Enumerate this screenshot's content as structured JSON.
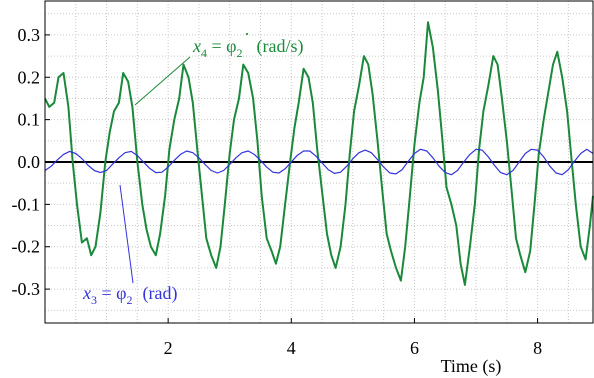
{
  "chart_data": {
    "type": "line",
    "xlabel": "Time (s)",
    "ylabel": "",
    "xlim": [
      0,
      8.9
    ],
    "ylim": [
      -0.38,
      0.38
    ],
    "xticks": [
      2,
      4,
      6,
      8
    ],
    "yticks": [
      -0.3,
      -0.2,
      -0.1,
      0.0,
      0.1,
      0.2,
      0.3
    ],
    "ytick_labels": [
      "-0.3",
      "-0.2",
      "-0.1",
      "0.0",
      "0.1",
      "0.2",
      "0.3"
    ],
    "grid": true,
    "series": [
      {
        "color": "#1a8a3a",
        "x": [
          0.0,
          0.07,
          0.15,
          0.22,
          0.3,
          0.38,
          0.45,
          0.52,
          0.6,
          0.68,
          0.75,
          0.82,
          0.9,
          0.98,
          1.05,
          1.12,
          1.2,
          1.27,
          1.35,
          1.42,
          1.5,
          1.58,
          1.65,
          1.72,
          1.8,
          1.87,
          1.95,
          2.02,
          2.1,
          2.18,
          2.25,
          2.33,
          2.4,
          2.48,
          2.55,
          2.62,
          2.7,
          2.78,
          2.85,
          2.92,
          3.0,
          3.07,
          3.15,
          3.22,
          3.3,
          3.38,
          3.45,
          3.52,
          3.6,
          3.68,
          3.75,
          3.82,
          3.9,
          3.98,
          4.05,
          4.12,
          4.2,
          4.28,
          4.35,
          4.42,
          4.5,
          4.58,
          4.65,
          4.72,
          4.8,
          4.88,
          4.95,
          5.02,
          5.1,
          5.18,
          5.25,
          5.32,
          5.4,
          5.48,
          5.55,
          5.62,
          5.7,
          5.78,
          5.85,
          5.92,
          6.0,
          6.08,
          6.15,
          6.22,
          6.3,
          6.38,
          6.45,
          6.52,
          6.6,
          6.68,
          6.75,
          6.82,
          6.9,
          6.98,
          7.05,
          7.12,
          7.2,
          7.28,
          7.35,
          7.42,
          7.5,
          7.58,
          7.65,
          7.72,
          7.8,
          7.88,
          7.95,
          8.02,
          8.1,
          8.18,
          8.25,
          8.32,
          8.4,
          8.48,
          8.55,
          8.62,
          8.7,
          8.78,
          8.85,
          8.9
        ],
        "values": [
          0.15,
          0.13,
          0.14,
          0.2,
          0.21,
          0.13,
          0.0,
          -0.1,
          -0.19,
          -0.18,
          -0.22,
          -0.2,
          -0.12,
          0.0,
          0.07,
          0.12,
          0.14,
          0.21,
          0.19,
          0.13,
          0.0,
          -0.1,
          -0.16,
          -0.2,
          -0.22,
          -0.17,
          -0.08,
          0.03,
          0.1,
          0.15,
          0.23,
          0.2,
          0.14,
          0.02,
          -0.08,
          -0.18,
          -0.22,
          -0.25,
          -0.2,
          -0.1,
          0.02,
          0.1,
          0.15,
          0.23,
          0.21,
          0.15,
          0.05,
          -0.08,
          -0.18,
          -0.21,
          -0.24,
          -0.2,
          -0.1,
          0.0,
          0.08,
          0.14,
          0.22,
          0.2,
          0.14,
          0.03,
          -0.07,
          -0.17,
          -0.22,
          -0.25,
          -0.2,
          -0.1,
          0.02,
          0.12,
          0.18,
          0.25,
          0.23,
          0.16,
          0.05,
          -0.07,
          -0.17,
          -0.21,
          -0.25,
          -0.28,
          -0.2,
          -0.09,
          0.04,
          0.14,
          0.2,
          0.33,
          0.27,
          0.17,
          0.06,
          -0.06,
          -0.1,
          -0.15,
          -0.24,
          -0.29,
          -0.2,
          -0.1,
          0.03,
          0.12,
          0.18,
          0.25,
          0.23,
          0.15,
          0.05,
          -0.07,
          -0.18,
          -0.22,
          -0.26,
          -0.21,
          -0.1,
          0.02,
          0.1,
          0.17,
          0.23,
          0.26,
          0.2,
          0.12,
          0.01,
          -0.1,
          -0.2,
          -0.23,
          -0.15,
          -0.08
        ]
      },
      {
        "color": "#3333dd",
        "x": [
          0.0,
          0.1,
          0.2,
          0.3,
          0.4,
          0.5,
          0.6,
          0.7,
          0.8,
          0.9,
          1.0,
          1.1,
          1.2,
          1.3,
          1.4,
          1.5,
          1.6,
          1.7,
          1.8,
          1.9,
          2.0,
          2.1,
          2.2,
          2.3,
          2.4,
          2.5,
          2.6,
          2.7,
          2.8,
          2.9,
          3.0,
          3.1,
          3.2,
          3.3,
          3.4,
          3.5,
          3.6,
          3.7,
          3.8,
          3.9,
          4.0,
          4.1,
          4.2,
          4.3,
          4.4,
          4.5,
          4.6,
          4.7,
          4.8,
          4.9,
          5.0,
          5.1,
          5.2,
          5.3,
          5.4,
          5.5,
          5.6,
          5.7,
          5.8,
          5.9,
          6.0,
          6.1,
          6.2,
          6.3,
          6.4,
          6.5,
          6.6,
          6.7,
          6.8,
          6.9,
          7.0,
          7.1,
          7.2,
          7.3,
          7.4,
          7.5,
          7.6,
          7.7,
          7.8,
          7.9,
          8.0,
          8.1,
          8.2,
          8.3,
          8.4,
          8.5,
          8.6,
          8.7,
          8.8,
          8.9
        ],
        "values": [
          -0.02,
          -0.01,
          0.005,
          0.018,
          0.025,
          0.02,
          0.008,
          -0.008,
          -0.02,
          -0.025,
          -0.02,
          -0.005,
          0.01,
          0.022,
          0.025,
          0.015,
          0.0,
          -0.015,
          -0.025,
          -0.024,
          -0.012,
          0.004,
          0.018,
          0.026,
          0.022,
          0.01,
          -0.006,
          -0.02,
          -0.026,
          -0.02,
          -0.006,
          0.01,
          0.022,
          0.026,
          0.018,
          0.004,
          -0.012,
          -0.024,
          -0.026,
          -0.016,
          0.0,
          0.016,
          0.026,
          0.026,
          0.014,
          -0.002,
          -0.018,
          -0.027,
          -0.024,
          -0.01,
          0.008,
          0.022,
          0.028,
          0.022,
          0.006,
          -0.012,
          -0.026,
          -0.028,
          -0.018,
          0.002,
          0.02,
          0.03,
          0.026,
          0.01,
          -0.01,
          -0.025,
          -0.03,
          -0.02,
          0.0,
          0.018,
          0.03,
          0.028,
          0.012,
          -0.008,
          -0.025,
          -0.03,
          -0.02,
          0.0,
          0.02,
          0.03,
          0.028,
          0.012,
          -0.01,
          -0.026,
          -0.03,
          -0.018,
          0.002,
          0.02,
          0.03,
          0.02
        ]
      }
    ],
    "annotations": {
      "x4": {
        "lhs": "x",
        "lhs_sub": "4",
        "eq": " = ",
        "dot": "·",
        "rhs": "φ",
        "rhs_sub": "2",
        "unit": "(rad/s)"
      },
      "x3": {
        "lhs": "x",
        "lhs_sub": "3",
        "eq": " = ",
        "rhs": "φ",
        "rhs_sub": "2",
        "unit": "(rad)"
      }
    }
  }
}
